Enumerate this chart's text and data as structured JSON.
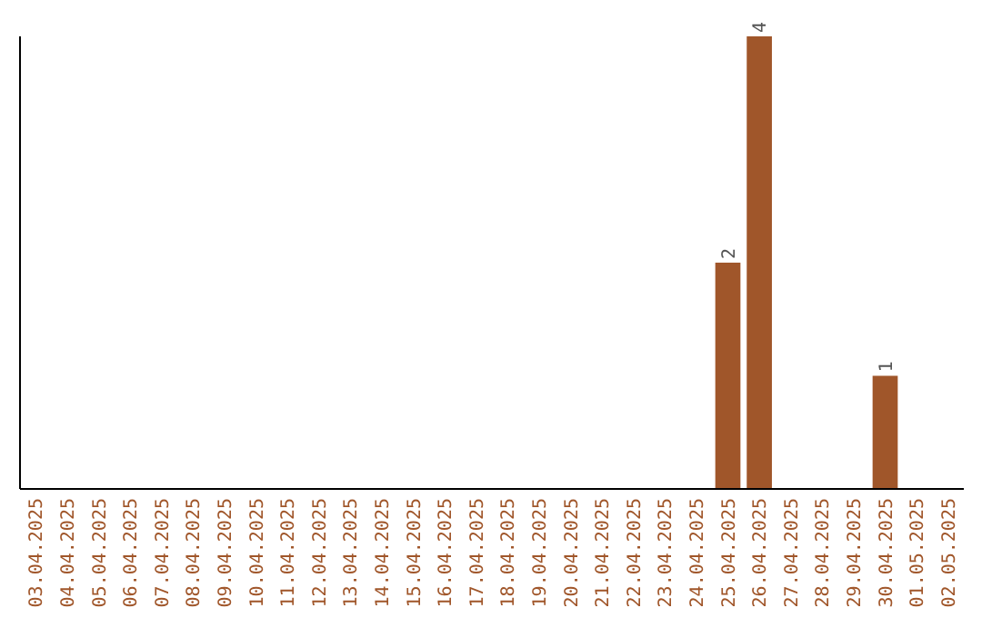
{
  "chart_data": {
    "type": "bar",
    "categories": [
      "03.04.2025",
      "04.04.2025",
      "05.04.2025",
      "06.04.2025",
      "07.04.2025",
      "08.04.2025",
      "09.04.2025",
      "10.04.2025",
      "11.04.2025",
      "12.04.2025",
      "13.04.2025",
      "14.04.2025",
      "15.04.2025",
      "16.04.2025",
      "17.04.2025",
      "18.04.2025",
      "19.04.2025",
      "20.04.2025",
      "21.04.2025",
      "22.04.2025",
      "23.04.2025",
      "24.04.2025",
      "25.04.2025",
      "26.04.2025",
      "27.04.2025",
      "28.04.2025",
      "29.04.2025",
      "30.04.2025",
      "01.05.2025",
      "02.05.2025"
    ],
    "values": [
      null,
      null,
      null,
      null,
      null,
      null,
      null,
      null,
      null,
      null,
      null,
      null,
      null,
      null,
      null,
      null,
      null,
      null,
      null,
      null,
      null,
      null,
      2,
      4,
      null,
      null,
      null,
      1,
      null,
      null
    ],
    "color": "#a0562a",
    "ylim": [
      0,
      4
    ],
    "data_labels": true,
    "tick_labels": "x",
    "grid": false
  }
}
